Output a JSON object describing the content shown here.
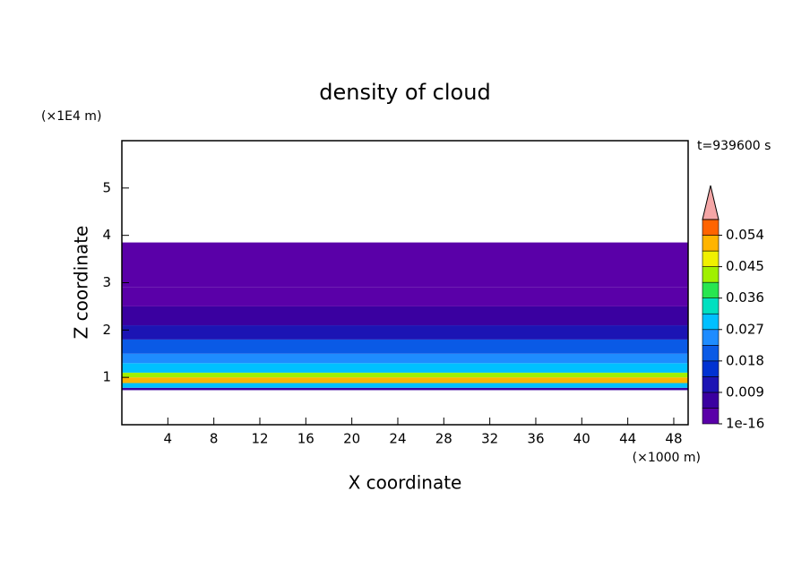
{
  "chart_data": {
    "type": "contour",
    "title": "density of cloud",
    "xlabel": "X coordinate",
    "ylabel": "Z coordinate",
    "xunit": "(×1000 m)",
    "yunit": "(×1E4 m)",
    "annotation": "t=939600 s",
    "xlim": [
      0,
      49.25
    ],
    "xticks": [
      4,
      8,
      12,
      16,
      20,
      24,
      28,
      32,
      36,
      40,
      44,
      48
    ],
    "ylim": [
      0,
      6
    ],
    "yticks": [
      1,
      2,
      3,
      4,
      5
    ],
    "field": {
      "z_edges": [
        0.73,
        0.78,
        0.88,
        1.0,
        1.1,
        1.3,
        1.5,
        1.8,
        2.1,
        2.5,
        2.9,
        3.85
      ],
      "values": [
        0.005,
        0.03,
        0.05,
        0.042,
        0.03,
        0.025,
        0.018,
        0.012,
        0.007,
        0.004,
        0.002
      ]
    },
    "colorbar": {
      "bounds": [
        1e-16,
        0.0045,
        0.009,
        0.0135,
        0.018,
        0.0225,
        0.027,
        0.0315,
        0.036,
        0.0405,
        0.045,
        0.0495,
        0.054,
        0.0585
      ],
      "colors": [
        "#5a00a8",
        "#3a00a0",
        "#1c14b4",
        "#0032d2",
        "#0a5ae6",
        "#1e8cff",
        "#00c0ff",
        "#00e0c0",
        "#28e650",
        "#a0f000",
        "#f0f000",
        "#ffb400",
        "#ff6400"
      ],
      "extend_color": "#f4a6a6",
      "ticks": [
        1e-16,
        0.009,
        0.018,
        0.027,
        0.036,
        0.045,
        0.054
      ]
    }
  }
}
